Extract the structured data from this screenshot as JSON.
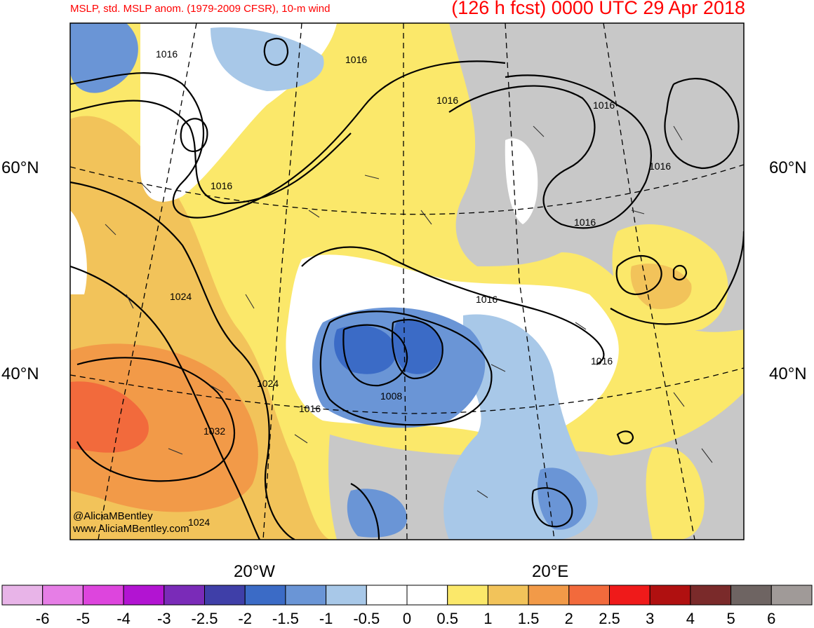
{
  "header": {
    "left_title": "MSLP, std. MSLP anom. (1979-2009 CFSR), 10-m wind",
    "right_title": "(126 h fcst) 0000 UTC 29 Apr 2018"
  },
  "map": {
    "lat_labels": [
      "60°N",
      "40°N"
    ],
    "lon_labels": [
      "20°W",
      "20°E"
    ],
    "isobar_labels": [
      "1016",
      "1016",
      "1016",
      "1016",
      "1016",
      "1016",
      "1016",
      "1016",
      "1016",
      "1024",
      "1024",
      "1032",
      "1024",
      "1008",
      "1016"
    ],
    "credit_line1": "@AliciaMBentley",
    "credit_line2": "www.AliciaMBentley.com"
  },
  "colorbar": {
    "colors": [
      "#e8b4e8",
      "#e67ee6",
      "#dd45dd",
      "#b214d2",
      "#7a2bb8",
      "#3f3fa8",
      "#3b6bc6",
      "#6a95d6",
      "#a8c8e8",
      "#ffffff",
      "#ffffff",
      "#fbe86a",
      "#f2c35a",
      "#f29a48",
      "#f26a3c",
      "#ef1a1a",
      "#b01010",
      "#7a2a2a",
      "#6e6462",
      "#a09a98"
    ],
    "labels": [
      "-6",
      "-5",
      "-4",
      "-3",
      "-2.5",
      "-2",
      "-1.5",
      "-1",
      "-0.5",
      "0",
      "0.5",
      "1",
      "1.5",
      "2",
      "2.5",
      "3",
      "4",
      "5",
      "6"
    ]
  }
}
